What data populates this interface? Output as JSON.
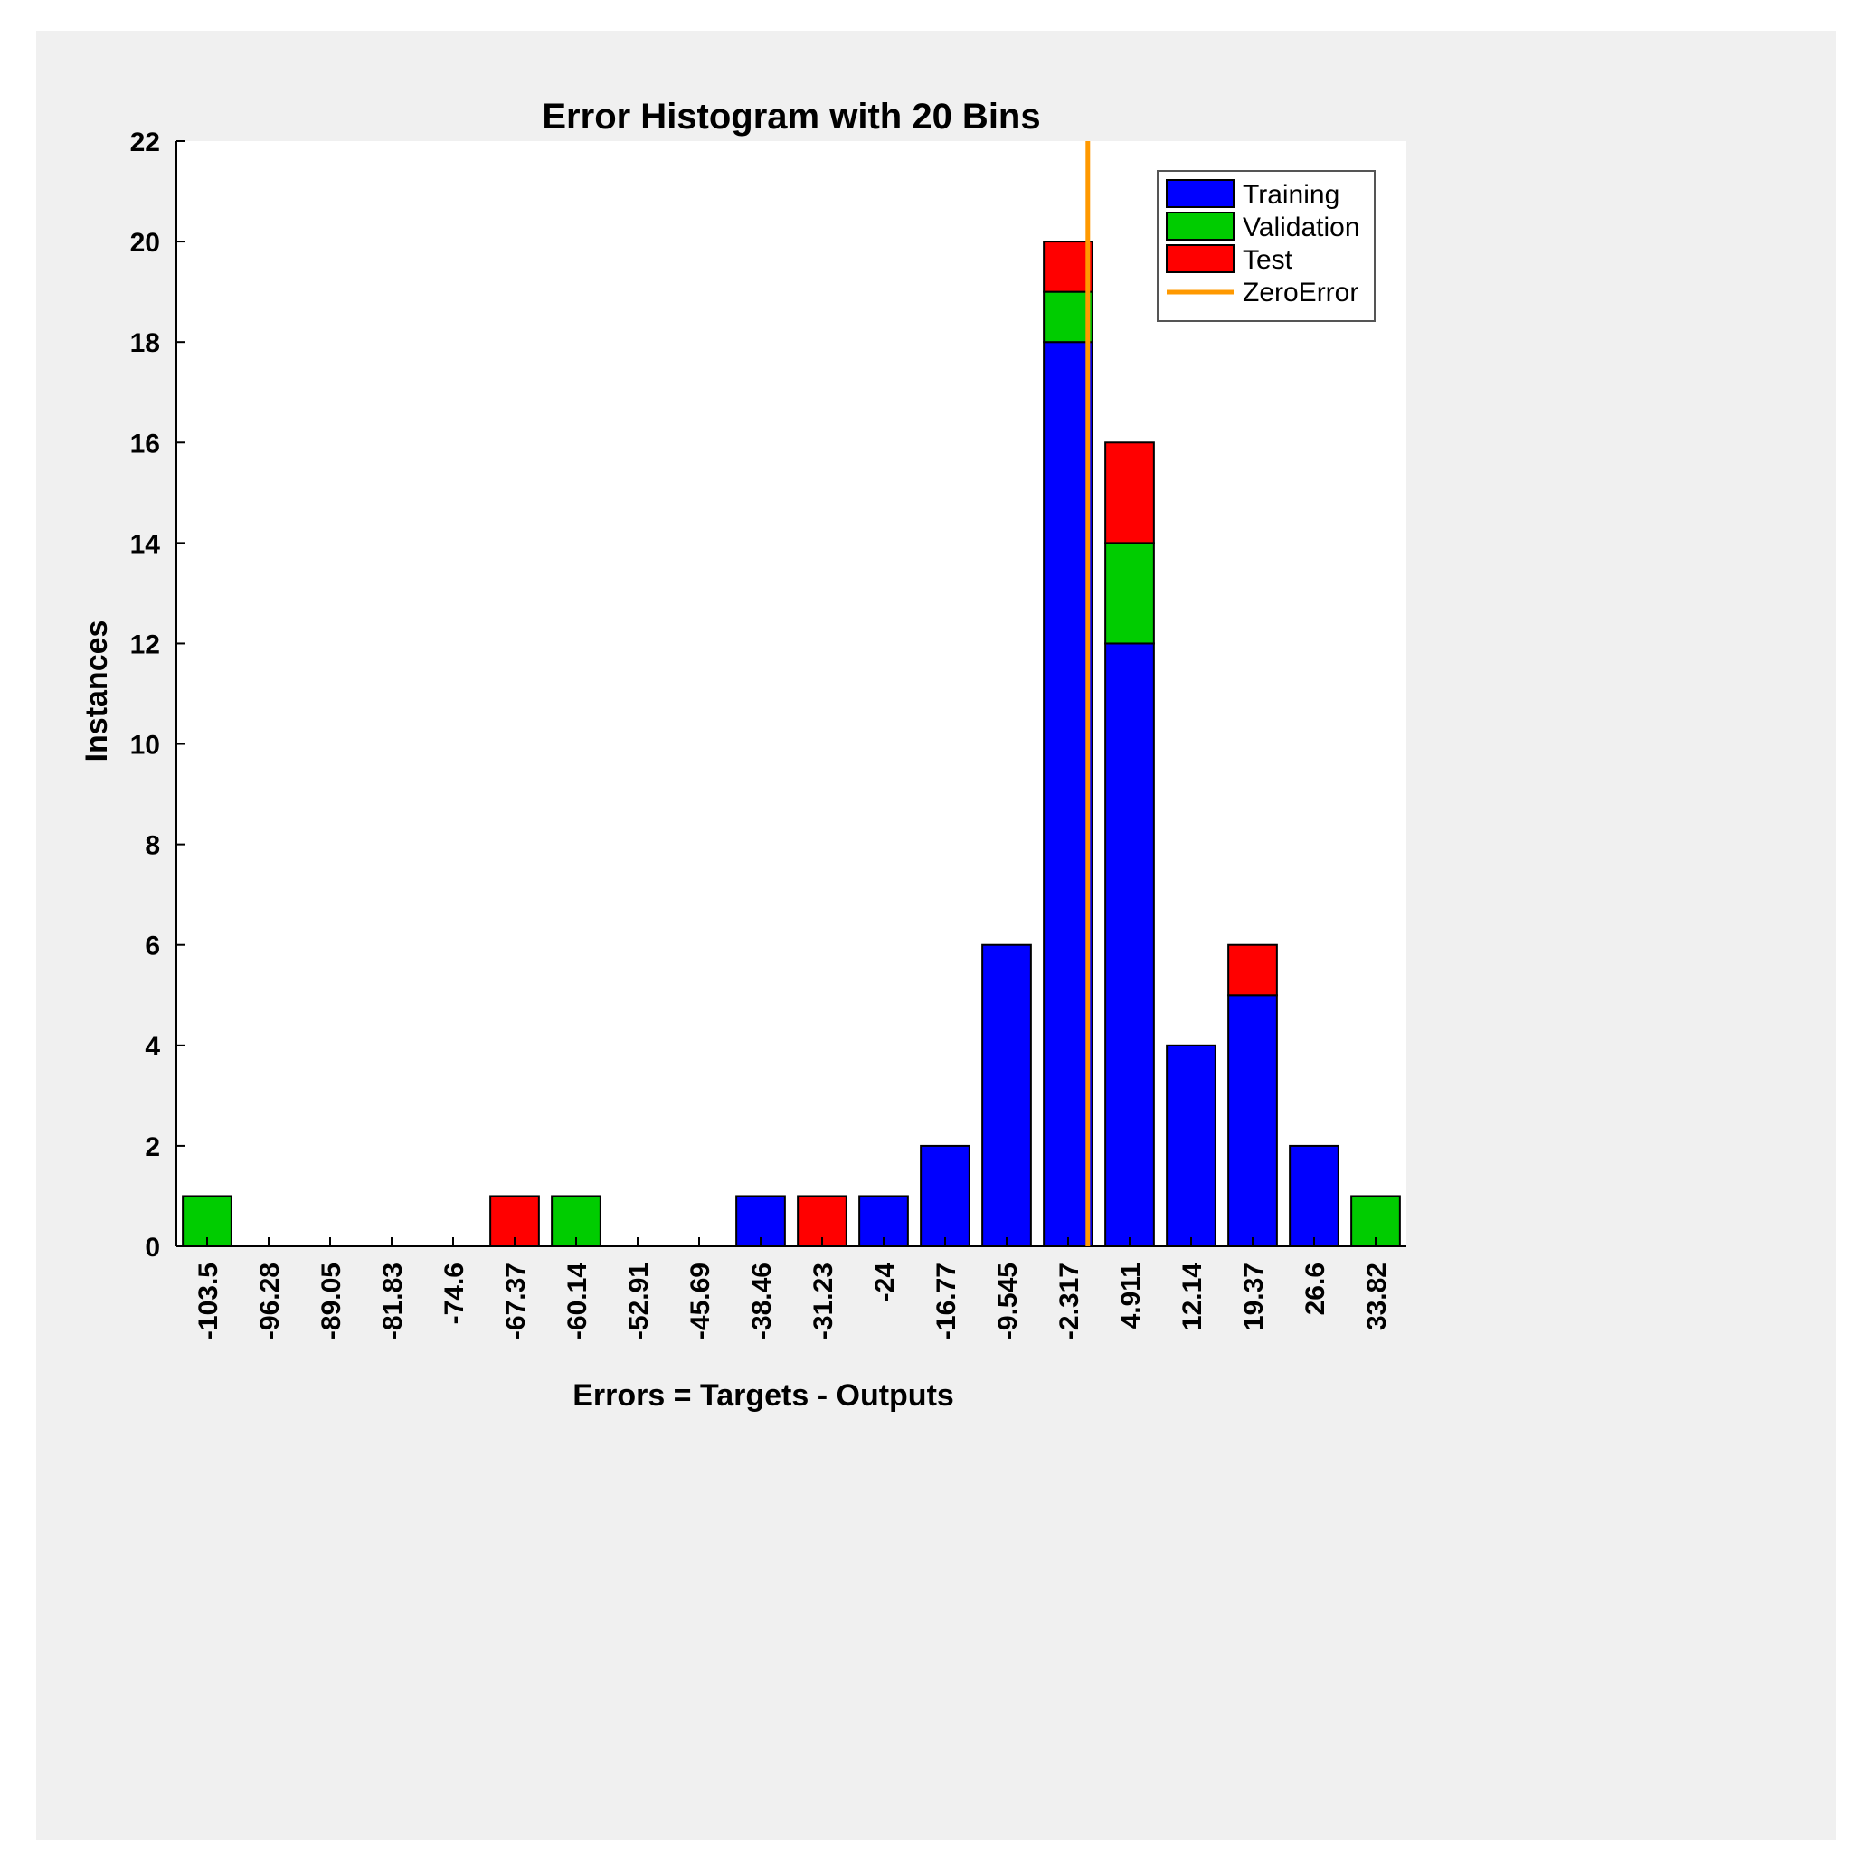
{
  "chart_data": {
    "type": "bar",
    "stacked": true,
    "title": "Error Histogram with 20 Bins",
    "xlabel": "Errors = Targets - Outputs",
    "ylabel": "Instances",
    "ylim": [
      0,
      22
    ],
    "yticks": [
      "0",
      "2",
      "4",
      "6",
      "8",
      "10",
      "12",
      "14",
      "16",
      "18",
      "20",
      "22"
    ],
    "categories": [
      "-103.5",
      "-96.28",
      "-89.05",
      "-81.83",
      "-74.6",
      "-67.37",
      "-60.14",
      "-52.91",
      "-45.69",
      "-38.46",
      "-31.23",
      "-24",
      "-16.77",
      "-9.545",
      "-2.317",
      "4.911",
      "12.14",
      "19.37",
      "26.6",
      "33.82"
    ],
    "series": [
      {
        "name": "Training",
        "color": "#0000ff",
        "values": [
          0,
          0,
          0,
          0,
          0,
          0,
          0,
          0,
          0,
          1,
          0,
          1,
          2,
          6,
          18,
          12,
          4,
          5,
          2,
          0
        ]
      },
      {
        "name": "Validation",
        "color": "#00cc00",
        "values": [
          1,
          0,
          0,
          0,
          0,
          0,
          1,
          0,
          0,
          0,
          0,
          0,
          0,
          0,
          1,
          2,
          0,
          0,
          0,
          1
        ]
      },
      {
        "name": "Test",
        "color": "#ff0000",
        "values": [
          0,
          0,
          0,
          0,
          0,
          1,
          0,
          0,
          0,
          0,
          1,
          0,
          0,
          0,
          1,
          2,
          0,
          1,
          0,
          0
        ]
      }
    ],
    "zero_error": {
      "name": "ZeroError",
      "color": "#ff9900",
      "x": 0
    },
    "legend_position": "top-right",
    "grid": false
  }
}
